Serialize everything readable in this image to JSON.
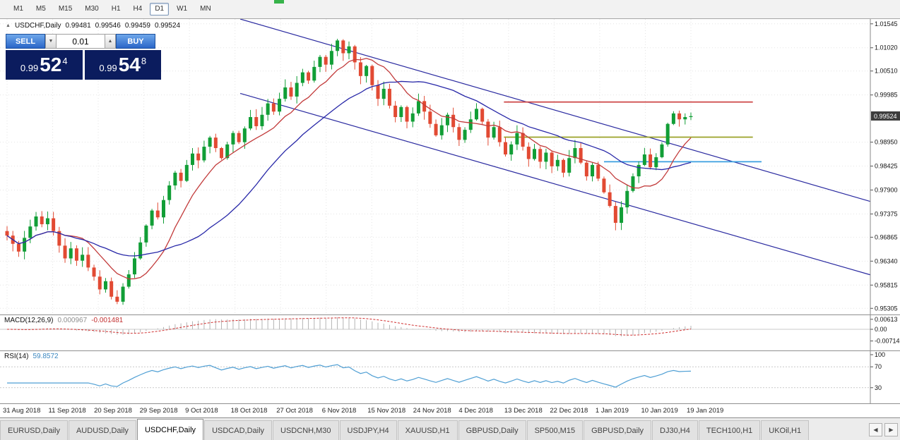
{
  "toolbar": {
    "timeframes": [
      "M1",
      "M5",
      "M15",
      "M30",
      "H1",
      "H4",
      "D1",
      "W1",
      "MN"
    ],
    "active": "D1"
  },
  "header": {
    "collapse_icon": "▲",
    "symbol": "USDCHF,Daily",
    "open": "0.99481",
    "high": "0.99546",
    "low": "0.99459",
    "close": "0.99524"
  },
  "one_click": {
    "sell_label": "SELL",
    "buy_label": "BUY",
    "volume": "0.01",
    "dropdown_icon": "▼",
    "up_icon": "▲",
    "sell_price": {
      "prefix": "0.99",
      "big": "52",
      "sup": "4"
    },
    "buy_price": {
      "prefix": "0.99",
      "big": "54",
      "sup": "8"
    }
  },
  "price_scale": [
    "1.01545",
    "1.01020",
    "1.00510",
    "0.99985",
    "0.98950",
    "0.98425",
    "0.97900",
    "0.97375",
    "0.96865",
    "0.96340",
    "0.95815",
    "0.95305"
  ],
  "current_price": "0.99524",
  "macd": {
    "label": "MACD(12,26,9)",
    "main_value": "0.000967",
    "signal_value": "-0.001481",
    "scale": [
      "0.00613",
      "0.00",
      "-0.00714"
    ]
  },
  "rsi": {
    "label": "RSI(14)",
    "value": "59.8572",
    "scale": [
      "100",
      "70",
      "30"
    ],
    "levels": [
      70,
      30
    ]
  },
  "date_axis": [
    "31 Aug 2018",
    "11 Sep 2018",
    "20 Sep 2018",
    "29 Sep 2018",
    "9 Oct 2018",
    "18 Oct 2018",
    "27 Oct 2018",
    "6 Nov 2018",
    "15 Nov 2018",
    "24 Nov 2018",
    "4 Dec 2018",
    "13 Dec 2018",
    "22 Dec 2018",
    "1 Jan 2019",
    "10 Jan 2019",
    "19 Jan 2019"
  ],
  "tabs": {
    "active_index": 2,
    "items": [
      "EURUSD,Daily",
      "AUDUSD,Daily",
      "USDCHF,Daily",
      "USDCAD,Daily",
      "USDCNH,M30",
      "USDJPY,H4",
      "XAUUSD,H1",
      "GBPUSD,Daily",
      "SP500,M15",
      "GBPUSD,Daily",
      "DJ30,H4",
      "TECH100,H1",
      "UKOil,H1"
    ],
    "scroll_left_icon": "◀",
    "scroll_right_icon": "▶"
  },
  "chart_data": {
    "type": "candlestick",
    "symbol": "USDCHF",
    "timeframe": "Daily",
    "open_first": 0.97,
    "price_range": [
      0.9517,
      1.0165
    ],
    "closes": [
      0.969,
      0.9672,
      0.9655,
      0.9685,
      0.971,
      0.9732,
      0.9715,
      0.9728,
      0.97,
      0.9668,
      0.964,
      0.9662,
      0.9635,
      0.9648,
      0.962,
      0.96,
      0.9572,
      0.959,
      0.9556,
      0.9545,
      0.9578,
      0.9605,
      0.964,
      0.9675,
      0.9712,
      0.9745,
      0.973,
      0.9768,
      0.98,
      0.9828,
      0.981,
      0.9845,
      0.987,
      0.9855,
      0.9885,
      0.9905,
      0.9882,
      0.986,
      0.989,
      0.9915,
      0.9895,
      0.9925,
      0.995,
      0.993,
      0.9955,
      0.998,
      0.9962,
      0.999,
      1.0015,
      0.9995,
      1.0025,
      1.0048,
      1.003,
      1.006,
      1.0082,
      1.0065,
      1.0095,
      1.0118,
      1.009,
      1.0105,
      1.007,
      1.004,
      1.0062,
      1.002,
      0.999,
      1.0012,
      0.9975,
      0.995,
      0.9972,
      0.994,
      0.9958,
      0.9985,
      0.9962,
      0.9935,
      0.991,
      0.9932,
      0.9955,
      0.9928,
      0.99,
      0.9922,
      0.9945,
      0.9968,
      0.994,
      0.9905,
      0.9928,
      0.9895,
      0.9868,
      0.989,
      0.9915,
      0.9885,
      0.9858,
      0.988,
      0.9852,
      0.9872,
      0.9842,
      0.9856,
      0.9828,
      0.986,
      0.9882,
      0.985,
      0.982,
      0.9845,
      0.9815,
      0.9785,
      0.9755,
      0.9718,
      0.9752,
      0.9788,
      0.982,
      0.9845,
      0.9868,
      0.984,
      0.9862,
      0.989,
      0.9935,
      0.9958,
      0.9945,
      0.995,
      0.9952
    ],
    "levels": [
      {
        "name": "resistance-line",
        "price": 0.9983,
        "color": "#d05050",
        "x1f": 0.579,
        "x2f": 0.865
      },
      {
        "name": "mid-line",
        "price": 0.9906,
        "color": "#9aa227",
        "x1f": 0.579,
        "x2f": 0.865
      },
      {
        "name": "support-line",
        "price": 0.9852,
        "color": "#3a9fe0",
        "x1f": 0.694,
        "x2f": 0.875
      }
    ],
    "trendlines": [
      {
        "name": "channel-upper",
        "x1f": 0.276,
        "p1": 1.0165,
        "x2f": 1.0,
        "p2": 0.9765
      },
      {
        "name": "channel-lower",
        "x1f": 0.276,
        "p1": 1.0002,
        "x2f": 1.0,
        "p2": 0.9604
      }
    ],
    "ma": [
      {
        "period": 10,
        "color": "#c23a3a"
      },
      {
        "period": 25,
        "color": "#2828a8"
      }
    ],
    "colors": {
      "up": "#119e36",
      "down": "#e24a33",
      "grid": "#e4e4e4",
      "trendline": "#2a2aa0",
      "macd_hist": "#b4b4b4",
      "macd_signal": "#d03030",
      "rsi_line": "#4f9fd4",
      "price_tag_bg": "#3d3d3d"
    }
  }
}
